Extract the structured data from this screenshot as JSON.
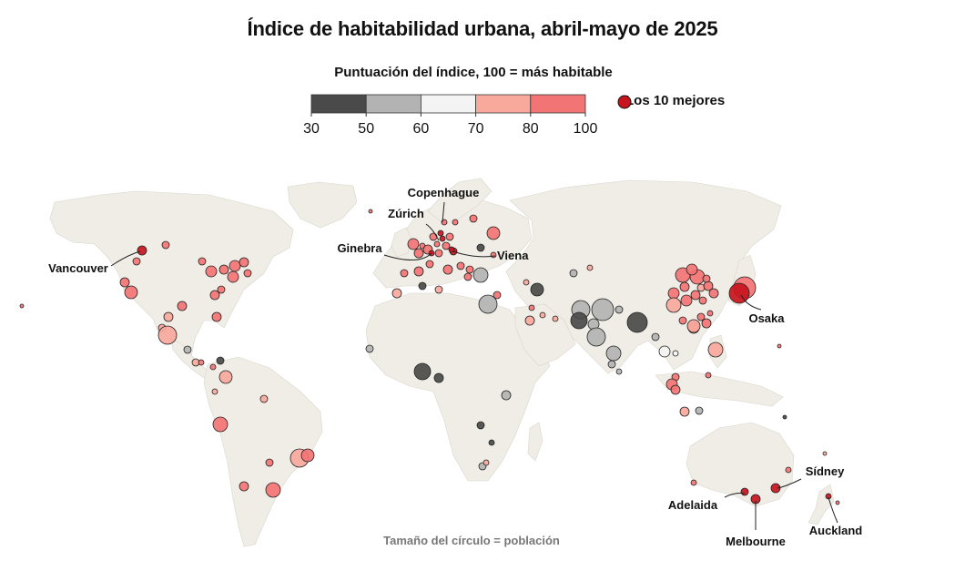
{
  "title": "Índice de habitabilidad urbana, abril-mayo de 2025",
  "legend": {
    "title": "Puntuación del índice, 100 = más habitable",
    "ticks": [
      "30",
      "50",
      "60",
      "70",
      "80",
      "100"
    ],
    "bins": [
      {
        "range": "30-50",
        "color": "#4a4a4a"
      },
      {
        "range": "50-60",
        "color": "#b3b3b3"
      },
      {
        "range": "60-70",
        "color": "#f3f3f3"
      },
      {
        "range": "70-80",
        "color": "#f9a89c"
      },
      {
        "range": "80-100",
        "color": "#f37474"
      }
    ],
    "top10_label": "Los 10 mejores",
    "top10_color": "#c8141e",
    "size_note": "Tamaño del círculo = población"
  },
  "colors": {
    "land": "#efede6",
    "ocean": "#ffffff",
    "top10": "#c8141e"
  },
  "labeled_cities": [
    {
      "name": "Copenhague"
    },
    {
      "name": "Zúrich"
    },
    {
      "name": "Ginebra"
    },
    {
      "name": "Viena"
    },
    {
      "name": "Vancouver"
    },
    {
      "name": "Osaka"
    },
    {
      "name": "Sídney"
    },
    {
      "name": "Adelaida"
    },
    {
      "name": "Melbourne"
    },
    {
      "name": "Auckland"
    }
  ]
}
